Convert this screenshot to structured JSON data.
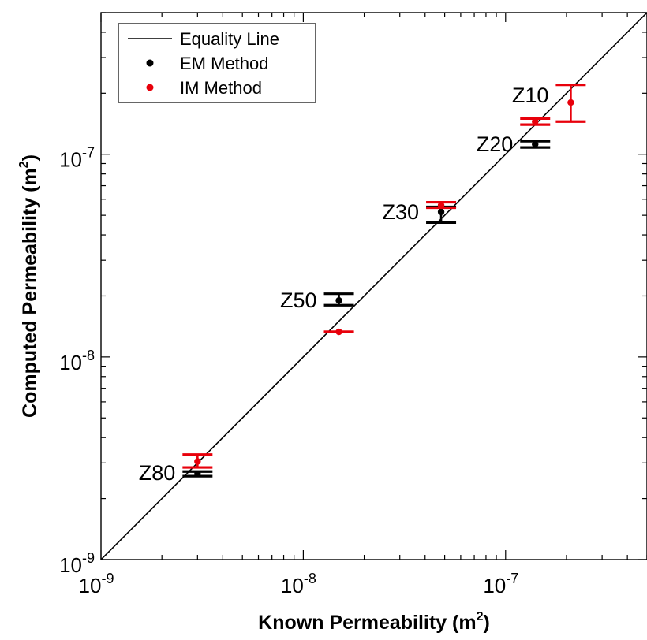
{
  "chart_data": {
    "type": "scatter",
    "xscale": "log",
    "yscale": "log",
    "xlim": [
      1e-09,
      5e-07
    ],
    "ylim": [
      1e-09,
      5e-07
    ],
    "xlabel": "Known Permeability (m^2)",
    "ylabel": "Computed Permeability (m^2)",
    "xticks": [
      1e-09,
      1e-08,
      1e-07
    ],
    "yticks": [
      1e-09,
      1e-08,
      1e-07
    ],
    "tick_labels": {
      "base": "10",
      "exponents": [
        "-9",
        "-8",
        "-7"
      ]
    },
    "grid": false,
    "legend_position": "top-left",
    "legend": [
      {
        "label": "Equality Line",
        "kind": "line",
        "color": "#000000"
      },
      {
        "label": "EM Method",
        "kind": "marker",
        "color": "#000000"
      },
      {
        "label": "IM Method",
        "kind": "marker",
        "color": "#e8000b"
      }
    ],
    "equality_line": {
      "from": 1e-09,
      "to": 5e-07
    },
    "series": [
      {
        "name": "EM Method",
        "color": "#000000",
        "points": [
          {
            "label": "Z80",
            "x": 3e-09,
            "y": 2.65e-09,
            "ymin": 2.58e-09,
            "ymax": 2.72e-09
          },
          {
            "label": "Z50",
            "x": 1.5e-08,
            "y": 1.9e-08,
            "ymin": 1.8e-08,
            "ymax": 2.05e-08
          },
          {
            "label": "Z30",
            "x": 4.8e-08,
            "y": 5.2e-08,
            "ymin": 4.6e-08,
            "ymax": 5.5e-08
          },
          {
            "label": "Z20",
            "x": 1.4e-07,
            "y": 1.12e-07,
            "ymin": 1.08e-07,
            "ymax": 1.16e-07
          }
        ]
      },
      {
        "name": "IM Method",
        "color": "#e8000b",
        "points": [
          {
            "label": "",
            "x": 3e-09,
            "y": 3.05e-09,
            "ymin": 2.85e-09,
            "ymax": 3.3e-09
          },
          {
            "label": "",
            "x": 1.5e-08,
            "y": 1.33e-08,
            "ymin": 1.33e-08,
            "ymax": 1.33e-08
          },
          {
            "label": "",
            "x": 4.8e-08,
            "y": 5.6e-08,
            "ymin": 5.45e-08,
            "ymax": 5.8e-08
          },
          {
            "label": "",
            "x": 1.4e-07,
            "y": 1.45e-07,
            "ymin": 1.4e-07,
            "ymax": 1.5e-07
          },
          {
            "label": "Z10",
            "x": 2.1e-07,
            "y": 1.8e-07,
            "ymin": 1.45e-07,
            "ymax": 2.2e-07
          }
        ]
      }
    ]
  }
}
